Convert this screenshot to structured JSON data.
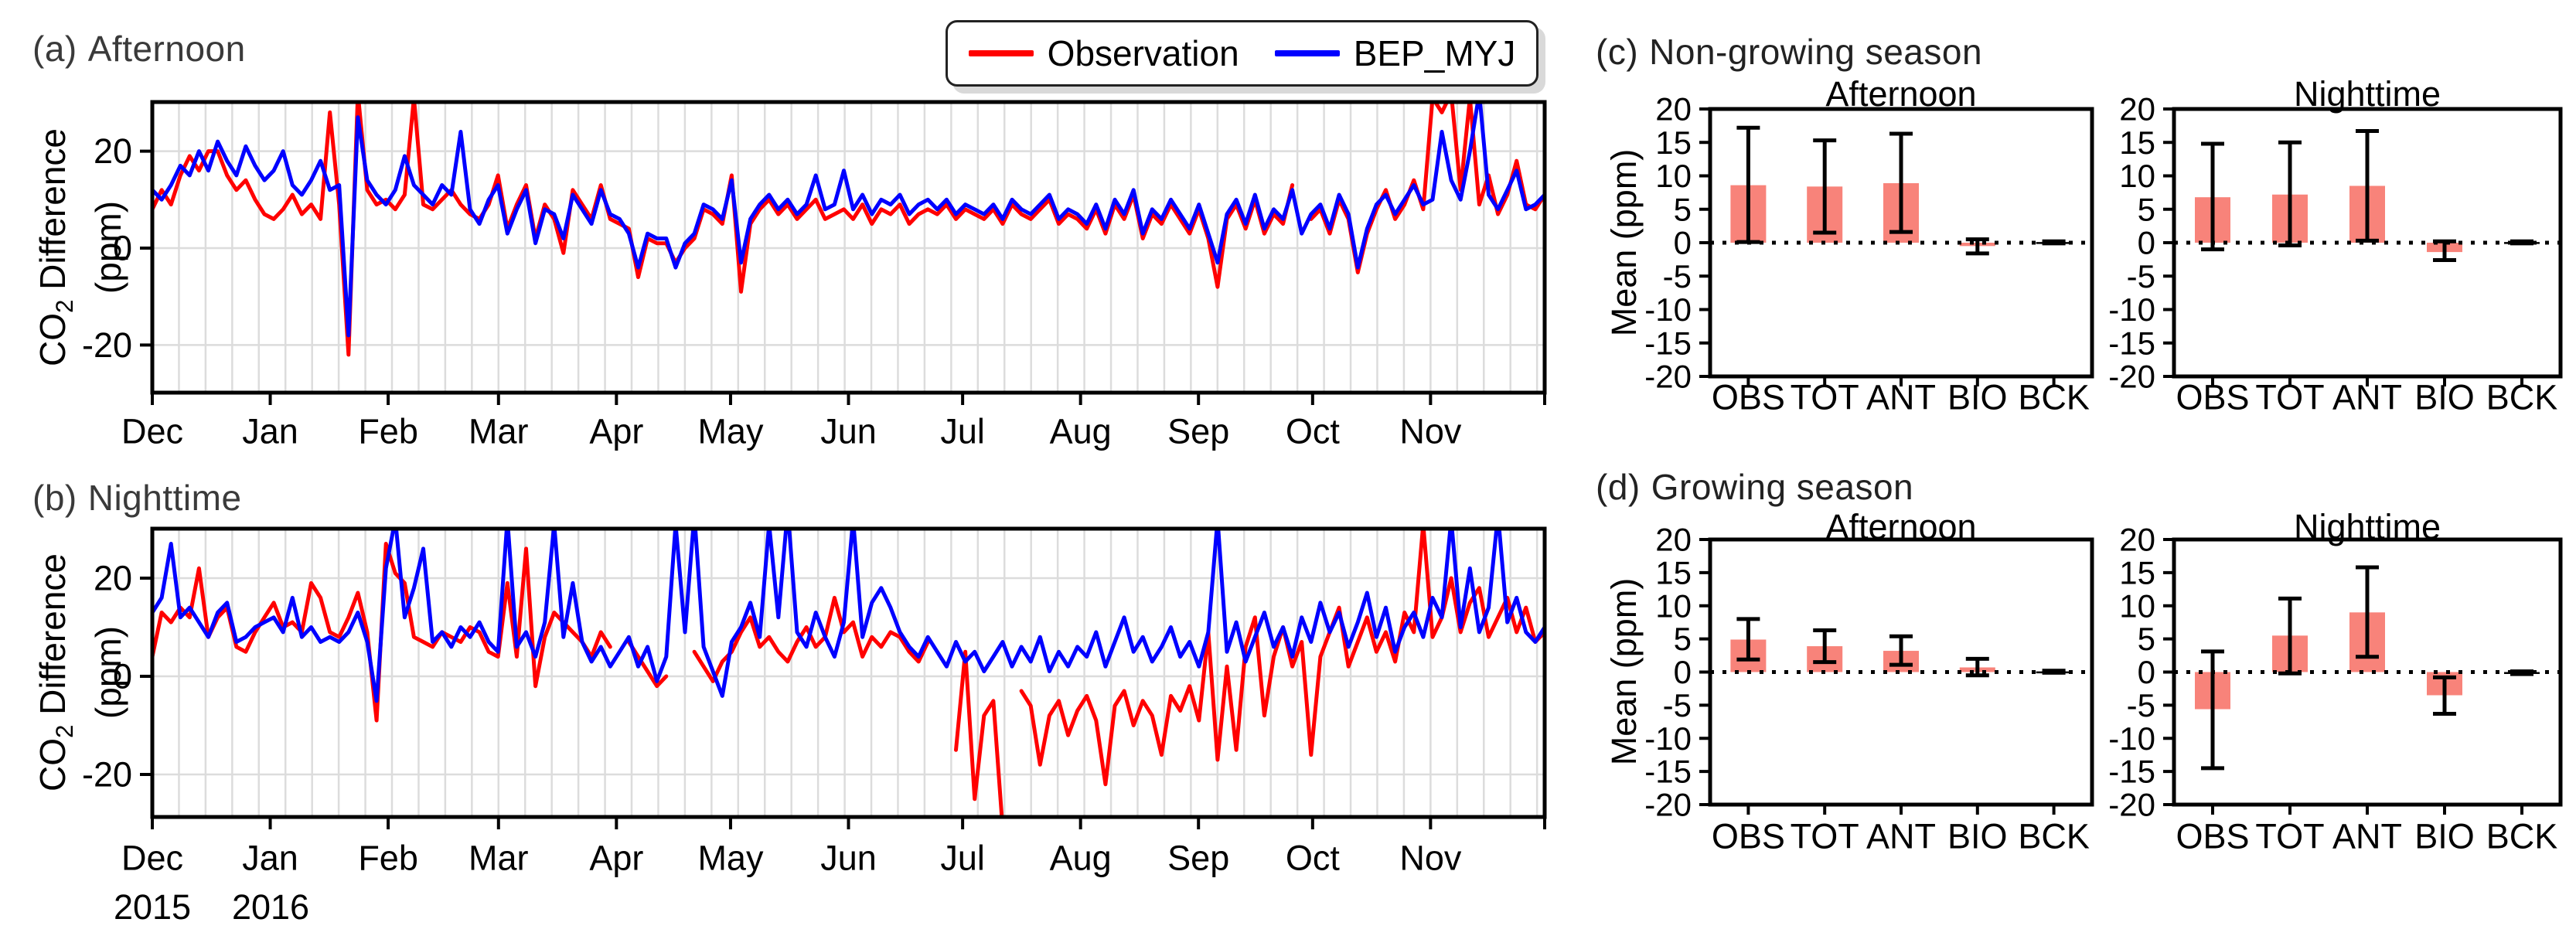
{
  "colors": {
    "observation": "#ff0000",
    "model": "#0000ff",
    "bar_fill": "#f8837a",
    "bck_fill": "#000000",
    "grid": "#dcdcdc",
    "axis": "#000000",
    "title_text": "#3a3a3a"
  },
  "legend": {
    "items": [
      {
        "label": "Observation",
        "color": "#ff0000"
      },
      {
        "label": "BEP_MYJ",
        "color": "#0000ff"
      }
    ]
  },
  "panels": {
    "a": {
      "label": "(a)",
      "title": "Afternoon",
      "ylabel_pre": "CO",
      "ylabel_sub": "2",
      "ylabel_post": " Difference",
      "ylabel_line2": "(ppm)"
    },
    "b": {
      "label": "(b)",
      "title": "Nighttime",
      "ylabel_pre": "CO",
      "ylabel_sub": "2",
      "ylabel_post": " Difference",
      "ylabel_line2": "(ppm)",
      "years": [
        "2015",
        "2016"
      ]
    },
    "c": {
      "label": "(c)",
      "title": "Non-growing season",
      "ylabel": "Mean (ppm)",
      "subplot_titles": [
        "Afternoon",
        "Nighttime"
      ]
    },
    "d": {
      "label": "(d)",
      "title": "Growing season",
      "ylabel": "Mean (ppm)",
      "subplot_titles": [
        "Afternoon",
        "Nighttime"
      ]
    }
  },
  "chart_data": [
    {
      "type": "line",
      "id": "a",
      "panel": "(a) Afternoon",
      "ylabel": "CO2 Difference (ppm)",
      "ylim": [
        -30,
        30
      ],
      "yticks": [
        -20,
        0,
        20
      ],
      "grid": "weekly-vertical and 20ppm-horizontal",
      "x_tick_labels": [
        "Dec",
        "Jan",
        "Feb",
        "Mar",
        "Apr",
        "May",
        "Jun",
        "Jul",
        "Aug",
        "Sep",
        "Oct",
        "Nov"
      ],
      "month_start_days": [
        0,
        31,
        62,
        91,
        122,
        152,
        183,
        213,
        244,
        275,
        305,
        336
      ],
      "total_days": 366,
      "series": [
        {
          "name": "Observation",
          "color": "#ff0000",
          "values": [
            8,
            12,
            9,
            15,
            19,
            16,
            20,
            20,
            15,
            12,
            14,
            10,
            7,
            6,
            8,
            11,
            7,
            9,
            6,
            28,
            9,
            -22,
            32,
            12,
            9,
            10,
            8,
            11,
            31,
            9,
            8,
            10,
            12,
            9,
            7,
            6,
            9,
            15,
            4,
            9,
            13,
            2,
            9,
            6,
            -1,
            12,
            9,
            6,
            13,
            6,
            5,
            4,
            -6,
            2,
            1,
            1,
            -3,
            0,
            2,
            8,
            7,
            5,
            15,
            -9,
            5,
            8,
            10,
            7,
            9,
            6,
            8,
            10,
            6,
            7,
            8,
            6,
            9,
            5,
            8,
            7,
            9,
            5,
            7,
            8,
            7,
            9,
            6,
            8,
            7,
            6,
            8,
            5,
            9,
            7,
            6,
            8,
            10,
            5,
            7,
            6,
            4,
            8,
            3,
            9,
            6,
            11,
            2,
            7,
            5,
            9,
            6,
            3,
            8,
            2,
            -8,
            6,
            9,
            4,
            10,
            3,
            7,
            5,
            13,
            null,
            6,
            8,
            3,
            10,
            6,
            -5,
            3,
            8,
            12,
            6,
            9,
            14,
            8,
            31,
            28,
            32,
            12,
            31,
            9,
            15,
            7,
            11,
            18,
            9,
            8,
            11
          ]
        },
        {
          "name": "BEP_MYJ",
          "color": "#0000ff",
          "values": [
            12,
            10,
            13,
            17,
            15,
            20,
            16,
            22,
            18,
            15,
            21,
            17,
            14,
            16,
            20,
            13,
            11,
            14,
            18,
            12,
            13,
            -18,
            27,
            14,
            11,
            9,
            12,
            19,
            13,
            11,
            9,
            13,
            11,
            24,
            8,
            5,
            10,
            13,
            3,
            8,
            12,
            1,
            8,
            7,
            2,
            11,
            8,
            5,
            12,
            7,
            6,
            3,
            -4,
            3,
            2,
            2,
            -4,
            1,
            3,
            9,
            8,
            6,
            14,
            -3,
            6,
            9,
            11,
            8,
            10,
            7,
            9,
            15,
            8,
            9,
            16,
            8,
            11,
            7,
            10,
            9,
            11,
            7,
            9,
            10,
            8,
            10,
            7,
            9,
            8,
            7,
            9,
            6,
            10,
            8,
            7,
            9,
            11,
            6,
            8,
            7,
            5,
            9,
            4,
            10,
            7,
            12,
            3,
            8,
            6,
            10,
            7,
            4,
            9,
            3,
            -3,
            7,
            10,
            5,
            11,
            4,
            8,
            6,
            12,
            3,
            7,
            9,
            4,
            11,
            7,
            -4,
            4,
            9,
            11,
            7,
            10,
            13,
            9,
            10,
            24,
            14,
            10,
            20,
            32,
            11,
            8,
            12,
            16,
            8,
            9,
            11
          ]
        }
      ]
    },
    {
      "type": "line",
      "id": "b",
      "panel": "(b) Nighttime",
      "ylabel": "CO2 Difference (ppm)",
      "ylim": [
        -30,
        30
      ],
      "yticks": [
        -20,
        0,
        20
      ],
      "x_tick_labels": [
        "Dec",
        "Jan",
        "Feb",
        "Mar",
        "Apr",
        "May",
        "Jun",
        "Jul",
        "Aug",
        "Sep",
        "Oct",
        "Nov"
      ],
      "year_labels": [
        "2015",
        "2016"
      ],
      "month_start_days": [
        0,
        31,
        62,
        91,
        122,
        152,
        183,
        213,
        244,
        275,
        305,
        336
      ],
      "total_days": 366,
      "series": [
        {
          "name": "Observation",
          "color": "#ff0000",
          "values": [
            4,
            13,
            11,
            14,
            12,
            22,
            8,
            12,
            14,
            6,
            5,
            9,
            12,
            15,
            10,
            11,
            9,
            19,
            16,
            9,
            8,
            12,
            17,
            9,
            -9,
            27,
            21,
            19,
            8,
            7,
            6,
            9,
            8,
            7,
            10,
            9,
            5,
            4,
            19,
            4,
            26,
            -2,
            8,
            13,
            11,
            9,
            7,
            4,
            9,
            6,
            null,
            7,
            4,
            1,
            -2,
            0,
            null,
            null,
            5,
            2,
            -1,
            3,
            5,
            9,
            12,
            6,
            8,
            5,
            3,
            7,
            10,
            6,
            8,
            16,
            9,
            11,
            4,
            8,
            6,
            9,
            8,
            5,
            3,
            7,
            null,
            null,
            -15,
            5,
            -25,
            -8,
            -5,
            -31,
            null,
            -3,
            -6,
            -18,
            -8,
            -5,
            -12,
            -7,
            -4,
            -9,
            -22,
            -6,
            -3,
            -10,
            -5,
            -8,
            -16,
            -4,
            -7,
            -2,
            -9,
            9,
            -17,
            2,
            -15,
            6,
            12,
            -8,
            4,
            10,
            2,
            7,
            -16,
            4,
            9,
            14,
            2,
            7,
            12,
            5,
            9,
            3,
            13,
            9,
            31,
            8,
            12,
            20,
            9,
            15,
            18,
            8,
            12,
            16,
            9,
            14,
            7,
            9
          ]
        },
        {
          "name": "BEP_MYJ",
          "color": "#0000ff",
          "values": [
            13,
            16,
            27,
            12,
            14,
            11,
            8,
            13,
            15,
            7,
            8,
            10,
            11,
            12,
            9,
            16,
            8,
            10,
            7,
            8,
            7,
            9,
            13,
            7,
            -5,
            22,
            32,
            12,
            18,
            26,
            7,
            9,
            6,
            10,
            8,
            11,
            7,
            5,
            32,
            6,
            9,
            4,
            11,
            31,
            8,
            19,
            7,
            3,
            6,
            2,
            5,
            8,
            2,
            6,
            -1,
            4,
            31,
            9,
            33,
            6,
            1,
            -4,
            7,
            10,
            15,
            8,
            31,
            12,
            34,
            9,
            6,
            13,
            8,
            4,
            11,
            32,
            8,
            15,
            18,
            14,
            9,
            6,
            4,
            8,
            5,
            2,
            7,
            3,
            5,
            1,
            4,
            7,
            2,
            6,
            3,
            8,
            1,
            5,
            2,
            6,
            4,
            9,
            2,
            7,
            12,
            5,
            8,
            3,
            6,
            10,
            4,
            7,
            2,
            9,
            32,
            5,
            11,
            3,
            8,
            13,
            6,
            10,
            4,
            12,
            7,
            15,
            9,
            13,
            6,
            11,
            17,
            8,
            14,
            5,
            10,
            13,
            8,
            16,
            12,
            32,
            10,
            22,
            9,
            14,
            33,
            11,
            16,
            9,
            7,
            10
          ]
        }
      ]
    },
    {
      "type": "bar",
      "id": "c_afternoon",
      "group": "(c) Non-growing season",
      "title": "Afternoon",
      "ylabel": "Mean (ppm)",
      "ylim": [
        -20,
        20
      ],
      "yticks": [
        20,
        15,
        10,
        5,
        0,
        -5,
        -10,
        -15,
        -20
      ],
      "categories": [
        "OBS",
        "TOT",
        "ANT",
        "BIO",
        "BCK"
      ],
      "values": [
        8.6,
        8.4,
        8.9,
        -0.5,
        0.1
      ],
      "err_low": [
        0.1,
        1.5,
        1.6,
        -1.6,
        -0.1
      ],
      "err_high": [
        17.2,
        15.3,
        16.3,
        0.5,
        0.2
      ],
      "bar_colors": [
        "#f8837a",
        "#f8837a",
        "#f8837a",
        "#f8837a",
        "#000000"
      ],
      "zero_line": "dotted"
    },
    {
      "type": "bar",
      "id": "c_nighttime",
      "group": "(c) Non-growing season",
      "title": "Nighttime",
      "ylabel": "Mean (ppm)",
      "ylim": [
        -20,
        20
      ],
      "yticks": [
        20,
        15,
        10,
        5,
        0,
        -5,
        -10,
        -15,
        -20
      ],
      "categories": [
        "OBS",
        "TOT",
        "ANT",
        "BIO",
        "BCK"
      ],
      "values": [
        6.8,
        7.2,
        8.5,
        -1.4,
        0.1
      ],
      "err_low": [
        -1.0,
        -0.4,
        0.3,
        -2.6,
        -0.1
      ],
      "err_high": [
        14.8,
        15.0,
        16.7,
        0.2,
        0.2
      ],
      "bar_colors": [
        "#f8837a",
        "#f8837a",
        "#f8837a",
        "#f8837a",
        "#000000"
      ],
      "zero_line": "dotted"
    },
    {
      "type": "bar",
      "id": "d_afternoon",
      "group": "(d) Growing season",
      "title": "Afternoon",
      "ylabel": "Mean (ppm)",
      "ylim": [
        -20,
        20
      ],
      "yticks": [
        20,
        15,
        10,
        5,
        0,
        -5,
        -10,
        -15,
        -20
      ],
      "categories": [
        "OBS",
        "TOT",
        "ANT",
        "BIO",
        "BCK"
      ],
      "values": [
        4.9,
        3.9,
        3.2,
        0.7,
        0.1
      ],
      "err_low": [
        1.9,
        1.5,
        1.1,
        -0.5,
        -0.1
      ],
      "err_high": [
        8.0,
        6.3,
        5.4,
        2.0,
        0.2
      ],
      "bar_colors": [
        "#f8837a",
        "#f8837a",
        "#f8837a",
        "#f8837a",
        "#000000"
      ],
      "zero_line": "dotted"
    },
    {
      "type": "bar",
      "id": "d_nighttime",
      "group": "(d) Growing season",
      "title": "Nighttime",
      "ylabel": "Mean (ppm)",
      "ylim": [
        -20,
        20
      ],
      "yticks": [
        20,
        15,
        10,
        5,
        0,
        -5,
        -10,
        -15,
        -20
      ],
      "categories": [
        "OBS",
        "TOT",
        "ANT",
        "BIO",
        "BCK"
      ],
      "values": [
        -5.6,
        5.5,
        9.0,
        -3.5,
        -0.1
      ],
      "err_low": [
        -14.5,
        -0.2,
        2.3,
        -6.3,
        -0.3
      ],
      "err_high": [
        3.1,
        11.1,
        15.8,
        -0.8,
        0.1
      ],
      "bar_colors": [
        "#f8837a",
        "#f8837a",
        "#f8837a",
        "#f8837a",
        "#000000"
      ],
      "zero_line": "dotted"
    }
  ]
}
